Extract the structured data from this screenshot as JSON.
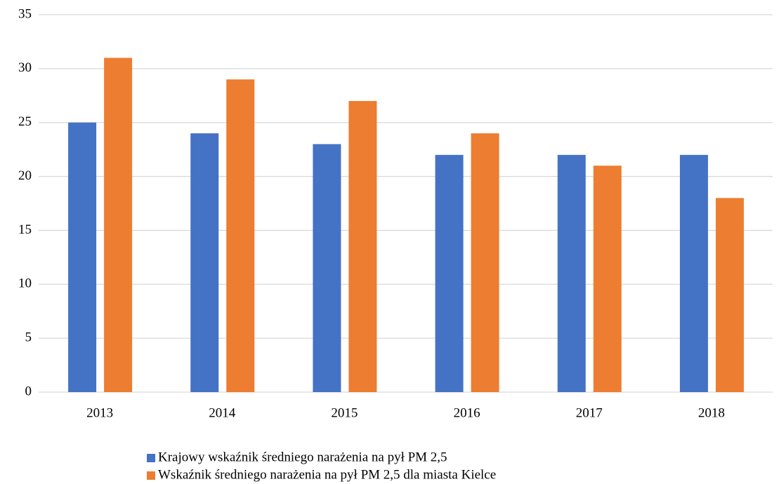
{
  "chart_data": {
    "type": "bar",
    "categories": [
      "2013",
      "2014",
      "2015",
      "2016",
      "2017",
      "2018"
    ],
    "series": [
      {
        "name": "Krajowy wskaźnik średniego narażenia na pył PM 2,5",
        "color": "#4472c4",
        "values": [
          25,
          24,
          23,
          22,
          22,
          22
        ]
      },
      {
        "name": "Wskaźnik średniego narażenia na pył PM 2,5 dla miasta Kielce",
        "color": "#ed7d31",
        "values": [
          31,
          29,
          27,
          24,
          21,
          18
        ]
      }
    ],
    "ylim": [
      0,
      35
    ],
    "yticks": [
      0,
      5,
      10,
      15,
      20,
      25,
      30,
      35
    ],
    "grid": true,
    "legend": "bottom"
  }
}
